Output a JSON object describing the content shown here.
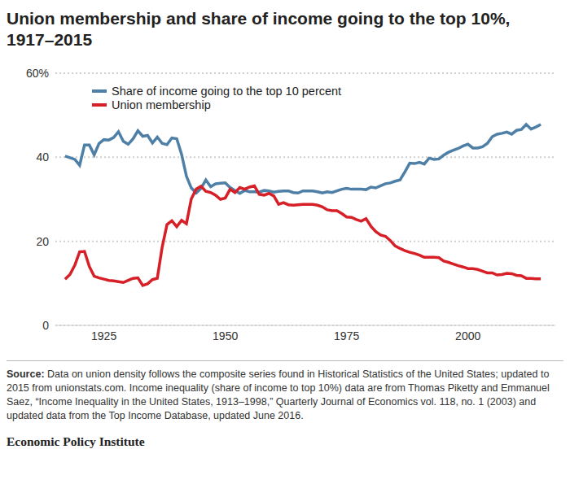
{
  "chart_data": {
    "type": "line",
    "title": "Union membership and share of income going to the top 10%, 1917–2015",
    "x": [
      1917,
      1918,
      1919,
      1920,
      1921,
      1922,
      1923,
      1924,
      1925,
      1926,
      1927,
      1928,
      1929,
      1930,
      1931,
      1932,
      1933,
      1934,
      1935,
      1936,
      1937,
      1938,
      1939,
      1940,
      1941,
      1942,
      1943,
      1944,
      1945,
      1946,
      1947,
      1948,
      1949,
      1950,
      1951,
      1952,
      1953,
      1954,
      1955,
      1956,
      1957,
      1958,
      1959,
      1960,
      1961,
      1962,
      1963,
      1964,
      1965,
      1966,
      1967,
      1968,
      1969,
      1970,
      1971,
      1972,
      1973,
      1974,
      1975,
      1976,
      1977,
      1978,
      1979,
      1980,
      1981,
      1982,
      1983,
      1984,
      1985,
      1986,
      1987,
      1988,
      1989,
      1990,
      1991,
      1992,
      1993,
      1994,
      1995,
      1996,
      1997,
      1998,
      1999,
      2000,
      2001,
      2002,
      2003,
      2004,
      2005,
      2006,
      2007,
      2008,
      2009,
      2010,
      2011,
      2012,
      2013,
      2014,
      2015
    ],
    "series": [
      {
        "name": "Share of income going to the top 10 percent",
        "color": "#4e7fa6",
        "values": [
          40.3,
          39.9,
          39.5,
          38.1,
          42.9,
          42.9,
          40.6,
          43.3,
          44.2,
          44.1,
          44.7,
          46.1,
          43.8,
          43.1,
          44.4,
          46.3,
          45.0,
          45.2,
          43.4,
          44.8,
          43.3,
          43.0,
          44.6,
          44.4,
          40.7,
          35.5,
          32.7,
          31.5,
          32.6,
          34.6,
          33.0,
          33.7,
          33.8,
          33.9,
          32.8,
          32.1,
          31.4,
          32.1,
          31.8,
          31.8,
          31.7,
          32.1,
          32.0,
          31.7,
          31.9,
          32.0,
          32.0,
          31.6,
          31.5,
          32.0,
          32.0,
          32.0,
          31.8,
          31.5,
          31.8,
          31.6,
          32.0,
          32.4,
          32.6,
          32.4,
          32.4,
          32.4,
          32.3,
          32.9,
          32.7,
          33.2,
          33.7,
          33.9,
          34.3,
          34.6,
          36.5,
          38.6,
          38.5,
          38.8,
          38.4,
          39.8,
          39.5,
          39.6,
          40.5,
          41.2,
          41.7,
          42.1,
          42.7,
          43.1,
          42.2,
          42.2,
          42.5,
          43.3,
          44.9,
          45.5,
          45.7,
          46.0,
          45.5,
          46.4,
          46.6,
          47.8,
          46.7,
          47.2,
          47.8
        ]
      },
      {
        "name": "Union membership",
        "color": "#d61f26",
        "values": [
          11.0,
          12.1,
          14.3,
          17.5,
          17.6,
          14.0,
          11.7,
          11.3,
          11.0,
          10.7,
          10.6,
          10.4,
          10.2,
          10.7,
          11.2,
          11.3,
          9.5,
          9.9,
          10.9,
          11.2,
          18.6,
          24.0,
          24.9,
          23.5,
          25.0,
          24.2,
          30.1,
          32.4,
          33.1,
          31.9,
          31.6,
          31.0,
          30.0,
          30.3,
          32.4,
          31.6,
          32.8,
          32.4,
          32.9,
          33.2,
          31.2,
          31.0,
          31.4,
          30.8,
          28.8,
          29.2,
          28.7,
          28.6,
          28.7,
          28.8,
          28.8,
          28.8,
          28.6,
          28.2,
          27.5,
          27.3,
          27.3,
          26.6,
          25.8,
          25.7,
          25.2,
          24.8,
          25.4,
          23.6,
          22.3,
          21.5,
          21.2,
          20.2,
          18.9,
          18.3,
          17.8,
          17.4,
          17.1,
          16.7,
          16.2,
          16.2,
          16.2,
          16.1,
          15.3,
          15.0,
          14.6,
          14.2,
          13.9,
          13.5,
          13.5,
          13.3,
          12.9,
          12.5,
          12.5,
          12.0,
          12.1,
          12.4,
          12.3,
          11.9,
          11.8,
          11.2,
          11.2,
          11.1,
          11.1
        ]
      }
    ],
    "xlim": [
      1915,
      2018
    ],
    "xticks": [
      1925,
      1950,
      1975,
      2000
    ],
    "ylim": [
      0,
      60
    ],
    "yticks": [
      0,
      20,
      40,
      {
        "value": 60,
        "label": "60%"
      }
    ],
    "grid": true,
    "legend": "upper left",
    "source_label": "Source:",
    "source": "Data on union density follows the composite series found in Historical Statistics of the United States; updated to 2015 from unionstats.com. Income inequality (share of income to top 10%) data are from Thomas Piketty and Emmanuel Saez, “Income Inequality in the United States, 1913–1998,” Quarterly Journal of Economics vol. 118, no. 1 (2003) and updated data from the Top Income Database, updated June 2016.",
    "footer": "Economic Policy Institute"
  }
}
